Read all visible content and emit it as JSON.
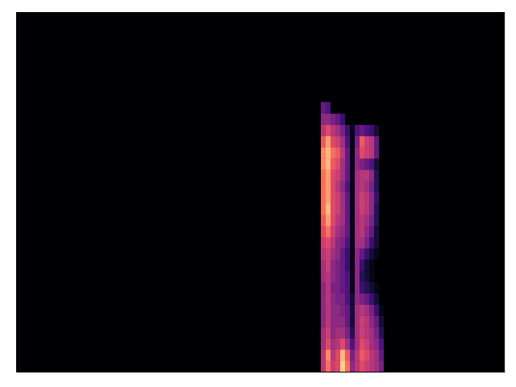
{
  "chart_data": {
    "type": "heatmap",
    "x": [
      63,
      64,
      65,
      66,
      67,
      68,
      69,
      70,
      71,
      72,
      73,
      74,
      75,
      76
    ],
    "y": [
      0,
      1,
      2,
      3,
      4,
      5,
      6,
      7,
      8,
      9,
      10,
      11,
      12,
      13,
      14,
      15,
      16,
      17,
      18,
      19,
      20,
      21,
      22,
      23
    ],
    "values": [
      [
        0.5,
        0.7,
        0.55,
        0.6,
        0.9,
        0.7,
        0.4,
        0.5,
        0.6,
        0.55,
        0.5,
        0.45,
        0.35,
        0
      ],
      [
        0.5,
        0.75,
        0.5,
        0.6,
        0.85,
        0.65,
        0.35,
        0.5,
        0.65,
        0.6,
        0.5,
        0.45,
        0.3,
        0
      ],
      [
        0.45,
        0.6,
        0.45,
        0.5,
        0.6,
        0.45,
        0.25,
        0.45,
        0.6,
        0.55,
        0.45,
        0.4,
        0.25,
        0
      ],
      [
        0.45,
        0.55,
        0.4,
        0.45,
        0.45,
        0.35,
        0.15,
        0.45,
        0.55,
        0.5,
        0.45,
        0.35,
        0.15,
        0
      ],
      [
        0.4,
        0.5,
        0.4,
        0.4,
        0.4,
        0.3,
        0.1,
        0.45,
        0.55,
        0.5,
        0.4,
        0.3,
        0.1,
        0
      ],
      [
        0.4,
        0.5,
        0.4,
        0.4,
        0.35,
        0.3,
        0.1,
        0.45,
        0.5,
        0.45,
        0.35,
        0.2,
        0.05,
        0
      ],
      [
        0.4,
        0.5,
        0.4,
        0.35,
        0.35,
        0.25,
        0.1,
        0.4,
        0.35,
        0.3,
        0.2,
        0.1,
        0,
        0
      ],
      [
        0.4,
        0.5,
        0.35,
        0.35,
        0.3,
        0.25,
        0.05,
        0.4,
        0.2,
        0.15,
        0.1,
        0.05,
        0,
        0
      ],
      [
        0.45,
        0.5,
        0.4,
        0.35,
        0.3,
        0.25,
        0.05,
        0.4,
        0.15,
        0.1,
        0.05,
        0,
        0,
        0
      ],
      [
        0.45,
        0.55,
        0.4,
        0.35,
        0.3,
        0.2,
        0.05,
        0.4,
        0.2,
        0.1,
        0.05,
        0,
        0,
        0
      ],
      [
        0.5,
        0.55,
        0.45,
        0.4,
        0.3,
        0.2,
        0.05,
        0.4,
        0.3,
        0.2,
        0.1,
        0.05,
        0,
        0
      ],
      [
        0.55,
        0.6,
        0.5,
        0.4,
        0.35,
        0.25,
        0.05,
        0.45,
        0.45,
        0.35,
        0.2,
        0.1,
        0,
        0
      ],
      [
        0.6,
        0.7,
        0.55,
        0.45,
        0.4,
        0.3,
        0.05,
        0.45,
        0.5,
        0.4,
        0.3,
        0.1,
        0,
        0
      ],
      [
        0.65,
        0.8,
        0.6,
        0.5,
        0.45,
        0.3,
        0.05,
        0.45,
        0.5,
        0.45,
        0.35,
        0.15,
        0,
        0
      ],
      [
        0.7,
        0.85,
        0.6,
        0.55,
        0.45,
        0.3,
        0.05,
        0.45,
        0.55,
        0.5,
        0.4,
        0.15,
        0,
        0
      ],
      [
        0.7,
        0.8,
        0.6,
        0.55,
        0.45,
        0.3,
        0.05,
        0.45,
        0.55,
        0.5,
        0.4,
        0.2,
        0,
        0
      ],
      [
        0.7,
        0.8,
        0.6,
        0.5,
        0.4,
        0.25,
        0.05,
        0.45,
        0.5,
        0.45,
        0.35,
        0.15,
        0,
        0
      ],
      [
        0.7,
        0.8,
        0.6,
        0.55,
        0.45,
        0.3,
        0.05,
        0.45,
        0.5,
        0.5,
        0.4,
        0.15,
        0,
        0
      ],
      [
        0.75,
        0.85,
        0.65,
        0.6,
        0.45,
        0.3,
        0.05,
        0.4,
        0.35,
        0.3,
        0.25,
        0.1,
        0,
        0
      ],
      [
        0.75,
        0.85,
        0.7,
        0.65,
        0.5,
        0.3,
        0.05,
        0.4,
        0.6,
        0.55,
        0.5,
        0.3,
        0,
        0
      ],
      [
        0.65,
        0.8,
        0.6,
        0.55,
        0.45,
        0.25,
        0.05,
        0.35,
        0.65,
        0.55,
        0.5,
        0.3,
        0,
        0
      ],
      [
        0.5,
        0.6,
        0.5,
        0.45,
        0.35,
        0.2,
        0.05,
        0.25,
        0.3,
        0.25,
        0.2,
        0.1,
        0,
        0
      ],
      [
        0.4,
        0.4,
        0.35,
        0.3,
        0.2,
        0,
        0,
        0,
        0,
        0,
        0,
        0,
        0,
        0
      ],
      [
        0.3,
        0.25,
        0,
        0,
        0,
        0,
        0,
        0,
        0,
        0,
        0,
        0,
        0,
        0
      ]
    ],
    "xlim": [
      0,
      101
    ],
    "ylim": [
      0,
      32
    ],
    "color_range": [
      0,
      1
    ],
    "tick_labels": false
  }
}
